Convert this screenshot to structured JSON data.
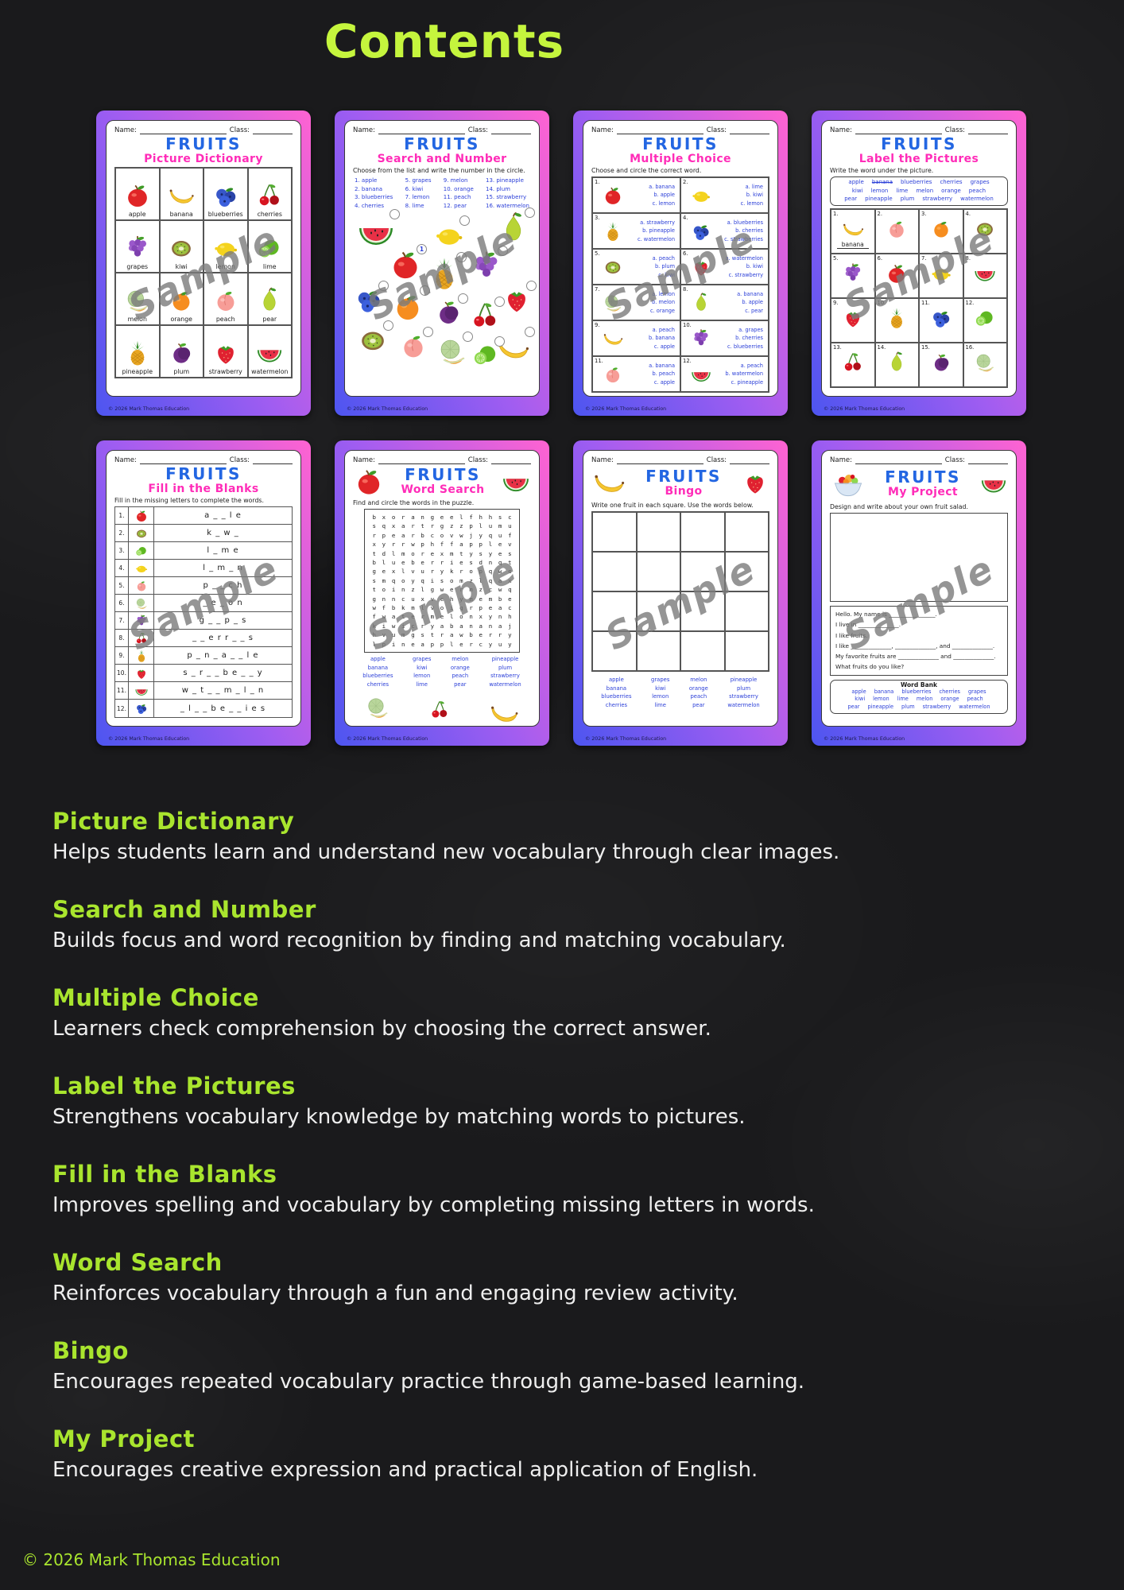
{
  "page": {
    "title": "Contents",
    "watermark": "Sample",
    "footer": "© 2026 Mark Thomas Education"
  },
  "common": {
    "name_label": "Name:",
    "class_label": "Class:",
    "brand": "FRUITS",
    "card_copyright": "© 2026 Mark Thomas Education"
  },
  "cards": {
    "picture_dictionary": {
      "subtitle": "Picture Dictionary",
      "cells": [
        "apple",
        "banana",
        "blueberries",
        "cherries",
        "grapes",
        "kiwi",
        "lemon",
        "lime",
        "melon",
        "orange",
        "peach",
        "pear",
        "pineapple",
        "plum",
        "strawberry",
        "watermelon"
      ]
    },
    "search_and_number": {
      "subtitle": "Search and Number",
      "instruction": "Choose from the list and write the number in the circle.",
      "columns": [
        [
          "1. apple",
          "2. banana",
          "3. blueberries",
          "4. cherries"
        ],
        [
          "5. grapes",
          "6. kiwi",
          "7. lemon",
          "8. lime"
        ],
        [
          "9. melon",
          "10. orange",
          "11. peach",
          "12. pear"
        ],
        [
          "13. pineapple",
          "14. plum",
          "15. strawberry",
          "16. watermelon"
        ]
      ],
      "scatter": [
        {
          "fruit": "watermelon",
          "badge": ""
        },
        {
          "fruit": "lemon",
          "badge": ""
        },
        {
          "fruit": "pear",
          "badge": ""
        },
        {
          "fruit": "apple",
          "badge": "1"
        },
        {
          "fruit": "grapes",
          "badge": ""
        },
        {
          "fruit": "blueberries",
          "badge": ""
        },
        {
          "fruit": "pineapple",
          "badge": ""
        },
        {
          "fruit": "orange",
          "badge": ""
        },
        {
          "fruit": "strawberry",
          "badge": ""
        },
        {
          "fruit": "plum",
          "badge": ""
        },
        {
          "fruit": "cherries",
          "badge": ""
        },
        {
          "fruit": "banana",
          "badge": ""
        },
        {
          "fruit": "kiwi",
          "badge": ""
        },
        {
          "fruit": "peach",
          "badge": ""
        },
        {
          "fruit": "melon",
          "badge": ""
        },
        {
          "fruit": "lime",
          "badge": ""
        }
      ]
    },
    "multiple_choice": {
      "subtitle": "Multiple Choice",
      "instruction": "Choose and circle the correct word.",
      "items": [
        {
          "n": "1.",
          "fruit": "apple",
          "options": [
            "a. banana",
            "b. apple",
            "c. lemon"
          ]
        },
        {
          "n": "2.",
          "fruit": "lemon",
          "options": [
            "a. lime",
            "b. kiwi",
            "c. lemon"
          ]
        },
        {
          "n": "3.",
          "fruit": "pineapple",
          "options": [
            "a. strawberry",
            "b. pineapple",
            "c. watermelon"
          ]
        },
        {
          "n": "4.",
          "fruit": "blueberries",
          "options": [
            "a. blueberries",
            "b. cherries",
            "c. strawberries"
          ]
        },
        {
          "n": "5.",
          "fruit": "kiwi",
          "options": [
            "a. peach",
            "b. plum",
            "c. kiwi"
          ]
        },
        {
          "n": "6.",
          "fruit": "strawberry",
          "options": [
            "a. watermelon",
            "b. kiwi",
            "c. strawberry"
          ]
        },
        {
          "n": "7.",
          "fruit": "melon",
          "options": [
            "a. lemon",
            "b. melon",
            "c. orange"
          ]
        },
        {
          "n": "8.",
          "fruit": "pear",
          "options": [
            "a. banana",
            "b. apple",
            "c. pear"
          ]
        },
        {
          "n": "9.",
          "fruit": "banana",
          "options": [
            "a. peach",
            "b. banana",
            "c. apple"
          ]
        },
        {
          "n": "10.",
          "fruit": "grapes",
          "options": [
            "a. grapes",
            "b. cherries",
            "c. blueberries"
          ]
        },
        {
          "n": "11.",
          "fruit": "peach",
          "options": [
            "a. banana",
            "b. peach",
            "c. apple"
          ]
        },
        {
          "n": "12.",
          "fruit": "watermelon",
          "options": [
            "a. peach",
            "b. watermelon",
            "c. pineapple"
          ]
        }
      ]
    },
    "label_the_pictures": {
      "subtitle": "Label the Pictures",
      "instruction": "Write the word under the picture.",
      "struck_word": "banana",
      "word_bank_rows": [
        [
          "apple",
          "banana",
          "blueberries",
          "cherries",
          "grapes"
        ],
        [
          "kiwi",
          "lemon",
          "lime",
          "melon",
          "orange",
          "peach"
        ],
        [
          "pear",
          "pineapple",
          "plum",
          "strawberry",
          "watermelon"
        ]
      ],
      "cells": [
        {
          "n": "1.",
          "fruit": "banana",
          "answer": "banana"
        },
        {
          "n": "2.",
          "fruit": "peach",
          "answer": ""
        },
        {
          "n": "3.",
          "fruit": "orange",
          "answer": ""
        },
        {
          "n": "4.",
          "fruit": "kiwi",
          "answer": ""
        },
        {
          "n": "5.",
          "fruit": "grapes",
          "answer": ""
        },
        {
          "n": "6.",
          "fruit": "apple",
          "answer": ""
        },
        {
          "n": "7.",
          "fruit": "lemon",
          "answer": ""
        },
        {
          "n": "8.",
          "fruit": "watermelon",
          "answer": ""
        },
        {
          "n": "9.",
          "fruit": "strawberry",
          "answer": ""
        },
        {
          "n": "10.",
          "fruit": "pineapple",
          "answer": ""
        },
        {
          "n": "11.",
          "fruit": "blueberries",
          "answer": ""
        },
        {
          "n": "12.",
          "fruit": "lime",
          "answer": ""
        },
        {
          "n": "13.",
          "fruit": "cherries",
          "answer": ""
        },
        {
          "n": "14.",
          "fruit": "pear",
          "answer": ""
        },
        {
          "n": "15.",
          "fruit": "plum",
          "answer": ""
        },
        {
          "n": "16.",
          "fruit": "melon",
          "answer": ""
        }
      ]
    },
    "fill_in_the_blanks": {
      "subtitle": "Fill in the Blanks",
      "instruction": "Fill in the missing letters to complete the words.",
      "rows": [
        {
          "n": "1.",
          "fruit": "apple",
          "word": "a _ _ l e"
        },
        {
          "n": "2.",
          "fruit": "kiwi",
          "word": "k _ w _"
        },
        {
          "n": "3.",
          "fruit": "lime",
          "word": "l _ m e"
        },
        {
          "n": "4.",
          "fruit": "lemon",
          "word": "l _ m _ n"
        },
        {
          "n": "5.",
          "fruit": "peach",
          "word": "p _ _ c h"
        },
        {
          "n": "6.",
          "fruit": "melon",
          "word": "_ e _ o n"
        },
        {
          "n": "7.",
          "fruit": "grapes",
          "word": "g _ _ p _ s"
        },
        {
          "n": "8.",
          "fruit": "cherries",
          "word": "_ _ e r r _ _ s"
        },
        {
          "n": "9.",
          "fruit": "pineapple",
          "word": "p _ n _ a _ _ l e"
        },
        {
          "n": "10.",
          "fruit": "strawberry",
          "word": "s _ r _ _ b e _ _ y"
        },
        {
          "n": "11.",
          "fruit": "watermelon",
          "word": "w _ t _ _ m _ l _ n"
        },
        {
          "n": "12.",
          "fruit": "blueberries",
          "word": "_ l _ _ b e _ _ i e s"
        }
      ]
    },
    "word_search": {
      "subtitle": "Word Search",
      "instruction": "Find and circle the words in the puzzle.",
      "grid": [
        "bxorangeelfhhsc",
        "sqxartrgzzplumu",
        "rpearbcovwjyquf",
        "xyrrwphffapplev",
        "tdlmorexmtysyes",
        "blueberriesdnqt",
        "gexlvurykropqwe",
        "smqoyqisomzlqax",
        "toinzlgwermzcwq",
        "gnncuxvchymembe",
        "wfbkmlvoigrpeac",
        "fwatermelonxynh",
        "kiwicryabananaj",
        "hvumgstrawberry",
        "lpineapplercyuy"
      ],
      "word_columns": [
        [
          "apple",
          "banana",
          "blueberries",
          "cherries"
        ],
        [
          "grapes",
          "kiwi",
          "lemon",
          "lime"
        ],
        [
          "melon",
          "orange",
          "peach",
          "pear"
        ],
        [
          "pineapple",
          "plum",
          "strawberry",
          "watermelon"
        ]
      ]
    },
    "bingo": {
      "subtitle": "Bingo",
      "instruction": "Write one fruit in each square. Use the words below.",
      "grid_rows": 4,
      "grid_cols": 4,
      "word_columns": [
        [
          "apple",
          "banana",
          "blueberries",
          "cherries"
        ],
        [
          "grapes",
          "kiwi",
          "lemon",
          "lime"
        ],
        [
          "melon",
          "orange",
          "peach",
          "pear"
        ],
        [
          "pineapple",
          "plum",
          "strawberry",
          "watermelon"
        ]
      ]
    },
    "my_project": {
      "subtitle": "My Project",
      "instruction": "Design and write about your own fruit salad.",
      "sentences": [
        "Hello. My name is ________________.",
        "I live in ______________.",
        "I like fruits.",
        "I like ______________, ______________, and ______________.",
        "My favorite fruits are ______________ and ______________.",
        "What fruits do you like?"
      ],
      "word_bank_title": "Word Bank",
      "word_bank_rows": [
        [
          "apple",
          "banana",
          "blueberries",
          "cherries",
          "grapes"
        ],
        [
          "kiwi",
          "lemon",
          "lime",
          "melon",
          "orange",
          "peach"
        ],
        [
          "pear",
          "pineapple",
          "plum",
          "strawberry",
          "watermelon"
        ]
      ]
    }
  },
  "sections": [
    {
      "title": "Picture Dictionary",
      "description": "Helps students learn and understand new vocabulary through clear images."
    },
    {
      "title": "Search and Number",
      "description": "Builds focus and word recognition by finding and matching vocabulary."
    },
    {
      "title": "Multiple Choice",
      "description": "Learners check comprehension by choosing the correct answer."
    },
    {
      "title": "Label the Pictures",
      "description": "Strengthens vocabulary knowledge by matching words to pictures."
    },
    {
      "title": "Fill in the Blanks",
      "description": "Improves spelling and vocabulary by completing missing letters in words."
    },
    {
      "title": "Word Search",
      "description": "Reinforces vocabulary through a fun and engaging review activity."
    },
    {
      "title": "Bingo",
      "description": "Encourages repeated vocabulary practice through game-based learning."
    },
    {
      "title": "My Project",
      "description": "Encourages creative expression and practical application of English."
    }
  ]
}
